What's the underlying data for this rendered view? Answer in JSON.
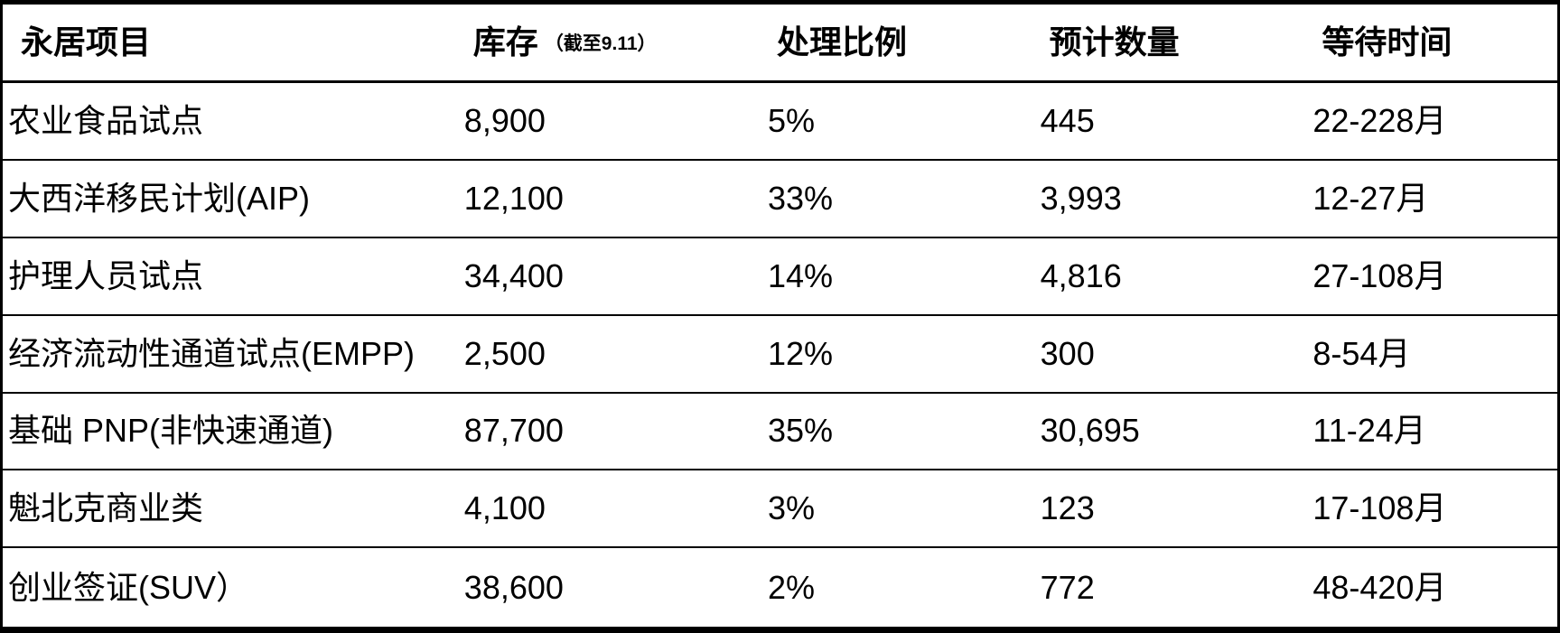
{
  "chart_data": {
    "type": "table",
    "title": "",
    "columns": [
      "永居项目",
      "库存",
      "处理比例",
      "预计数量",
      "等待时间"
    ],
    "inventory_note": "（截至9.11）",
    "rows": [
      [
        "农业食品试点",
        "8,900",
        "5%",
        "445",
        "22-228月"
      ],
      [
        "大西洋移民计划(AIP)",
        "12,100",
        "33%",
        "3,993",
        "12-27月"
      ],
      [
        "护理人员试点",
        "34,400",
        "14%",
        "4,816",
        "27-108月"
      ],
      [
        "经济流动性通道试点(EMPP)",
        "2,500",
        "12%",
        "300",
        "8-54月"
      ],
      [
        "基础 PNP(非快速通道)",
        "87,700",
        "35%",
        "30,695",
        "11-24月"
      ],
      [
        "魁北克商业类",
        "4,100",
        "3%",
        "123",
        "17-108月"
      ],
      [
        "创业签证(SUV）",
        "38,600",
        "2%",
        "772",
        "48-420月"
      ]
    ]
  },
  "colors": {
    "background": "#ffffff",
    "text": "#000000",
    "border": "#000000"
  }
}
